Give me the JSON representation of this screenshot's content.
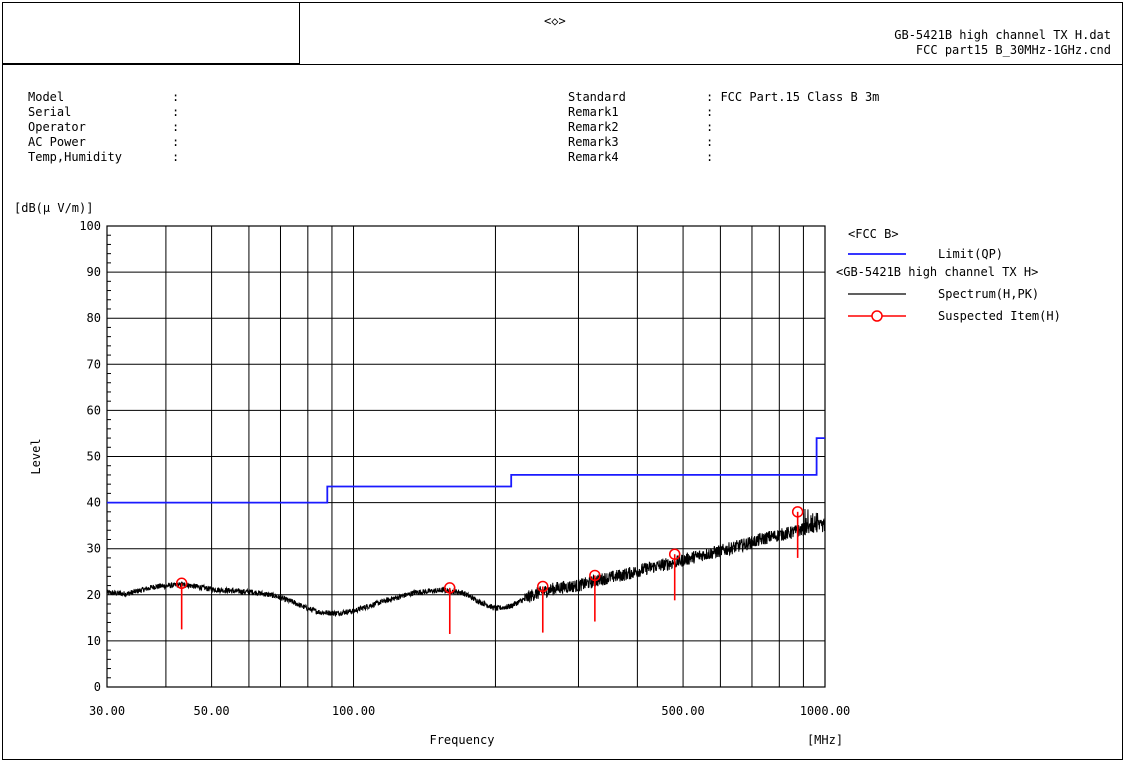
{
  "header": {
    "center_mark": "<◇>",
    "file_name": "GB-5421B high channel TX H.dat",
    "condition_file": "FCC part15 B_30MHz-1GHz.cnd"
  },
  "info_left": [
    {
      "label": "Model",
      "value": ":"
    },
    {
      "label": "Serial",
      "value": ":"
    },
    {
      "label": "Operator",
      "value": ":"
    },
    {
      "label": "AC Power",
      "value": ":"
    },
    {
      "label": "Temp,Humidity",
      "value": ":"
    }
  ],
  "info_right": [
    {
      "label": "Standard",
      "value": ": FCC Part.15 Class B 3m"
    },
    {
      "label": "Remark1",
      "value": ":"
    },
    {
      "label": "Remark2",
      "value": ":"
    },
    {
      "label": "Remark3",
      "value": ":"
    },
    {
      "label": "Remark4",
      "value": ":"
    }
  ],
  "legend": {
    "group1_title": "<FCC B>",
    "limit_label": "Limit(QP)",
    "group2_title": "<GB-5421B high channel TX H>",
    "spectrum_label": "Spectrum(H,PK)",
    "suspected_label": "Suspected Item(H)"
  },
  "colors": {
    "limit": "#1a1aff",
    "spectrum": "#000000",
    "suspected": "#ff0000",
    "grid": "#000000"
  },
  "chart_data": {
    "type": "line",
    "xscale": "log",
    "xlim": [
      30,
      1000
    ],
    "ylim": [
      0,
      100
    ],
    "ylabel_unit": "[dB(μ V/m)]",
    "ylabel": "Level",
    "xlabel": "Frequency",
    "xunit": "[MHz]",
    "y_ticks": [
      0,
      10,
      20,
      30,
      40,
      50,
      60,
      70,
      80,
      90,
      100
    ],
    "x_tick_labels": [
      {
        "value": 30,
        "label": "30.00"
      },
      {
        "value": 50,
        "label": "50.00"
      },
      {
        "value": 100,
        "label": "100.00"
      },
      {
        "value": 500,
        "label": "500.00"
      },
      {
        "value": 1000,
        "label": "1000.00"
      }
    ],
    "grid": true,
    "series": [
      {
        "name": "Limit(QP)",
        "kind": "step",
        "x": [
          30,
          88,
          88,
          216,
          216,
          960,
          960,
          1000
        ],
        "y": [
          40,
          40,
          43.5,
          43.5,
          46,
          46,
          54,
          54
        ]
      },
      {
        "name": "Spectrum(H,PK)",
        "kind": "noise",
        "x": [
          30,
          33,
          38,
          44,
          50,
          56,
          62,
          68,
          74,
          80,
          85,
          92,
          100,
          115,
          135,
          155,
          170,
          185,
          200,
          215,
          240,
          270,
          300,
          340,
          380,
          430,
          480,
          540,
          600,
          680,
          760,
          850,
          920,
          1000
        ],
        "y": [
          20.5,
          20.2,
          21.8,
          22.2,
          21.2,
          20.8,
          20.5,
          19.8,
          18.5,
          17,
          16.2,
          16,
          16.5,
          18.5,
          20.5,
          21,
          20.5,
          18.5,
          17,
          17.5,
          20,
          21.5,
          22,
          23.5,
          24.5,
          26,
          27,
          28.5,
          29.5,
          31,
          32.5,
          33.5,
          34.5,
          35
        ]
      },
      {
        "name": "Suspected Item(H)",
        "kind": "markers",
        "points": [
          {
            "x": 43.2,
            "y": 22.5
          },
          {
            "x": 160,
            "y": 21.5
          },
          {
            "x": 252,
            "y": 21.8
          },
          {
            "x": 325,
            "y": 24.2
          },
          {
            "x": 480,
            "y": 28.8
          },
          {
            "x": 875,
            "y": 38
          }
        ]
      }
    ]
  }
}
